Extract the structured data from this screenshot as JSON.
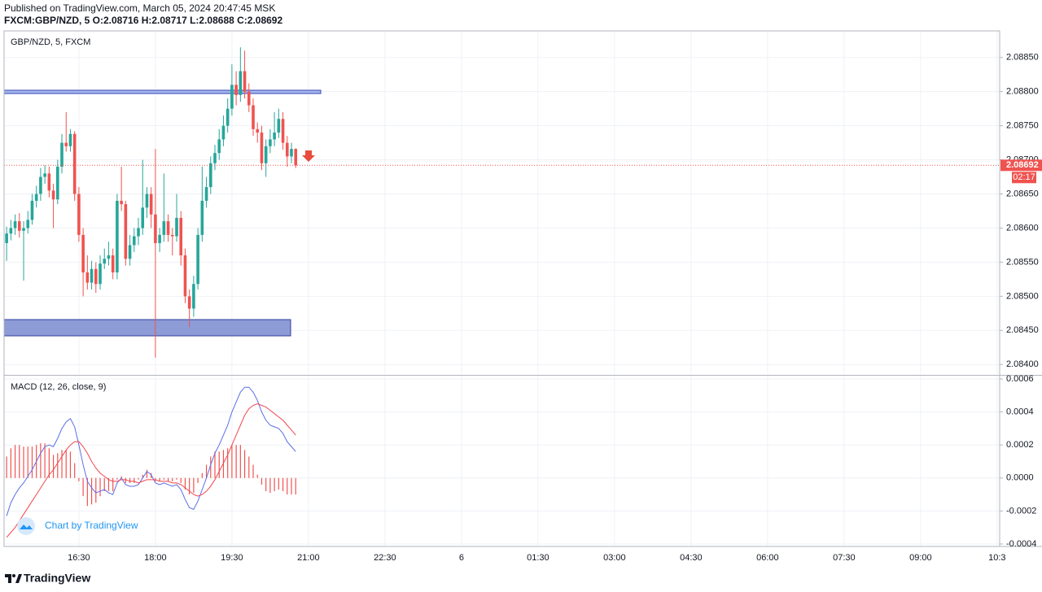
{
  "header": {
    "published": "Published on TradingView.com, March 05, 2024 20:47:45 MSK",
    "symbol_line": "FXCM:GBP/NZD, 5  O:2.08716 H:2.08717 L:2.08688 C:2.08692",
    "watermark": "Chart by TradingView",
    "brand": "TradingView"
  },
  "chart_data": [
    {
      "type": "candlestick",
      "title": "GBP/NZD, 5, FXCM",
      "up_color": "#26a69a",
      "down_color": "#ef5350",
      "countdown": "02:17",
      "x": [
        "15:05",
        "15:10",
        "15:15",
        "15:20",
        "15:25",
        "15:30",
        "15:35",
        "15:40",
        "15:45",
        "15:50",
        "15:55",
        "16:00",
        "16:05",
        "16:10",
        "16:15",
        "16:20",
        "16:25",
        "16:30",
        "16:35",
        "16:40",
        "16:45",
        "16:50",
        "16:55",
        "17:00",
        "17:05",
        "17:10",
        "17:15",
        "17:20",
        "17:25",
        "17:30",
        "17:35",
        "17:40",
        "17:45",
        "17:50",
        "17:55",
        "18:00",
        "18:05",
        "18:10",
        "18:15",
        "18:20",
        "18:25",
        "18:30",
        "18:35",
        "18:40",
        "18:45",
        "18:50",
        "18:55",
        "19:00",
        "19:05",
        "19:10",
        "19:15",
        "19:20",
        "19:25",
        "19:30",
        "19:35",
        "19:40",
        "19:45",
        "19:50",
        "19:55",
        "20:00",
        "20:05",
        "20:10",
        "20:15",
        "20:20",
        "20:25",
        "20:30",
        "20:35",
        "20:40",
        "20:45"
      ],
      "open": [
        2.08578,
        2.08592,
        2.086,
        2.0861,
        2.08596,
        2.086,
        2.08612,
        2.0864,
        2.0865,
        2.08675,
        2.0868,
        2.08655,
        2.08642,
        2.0869,
        2.08725,
        2.0872,
        2.08738,
        2.0865,
        2.0859,
        2.08535,
        2.0852,
        2.0854,
        2.08518,
        2.08548,
        2.08555,
        2.0856,
        2.08535,
        2.0864,
        2.08635,
        2.08555,
        2.08575,
        2.08588,
        2.086,
        2.0863,
        2.0865,
        2.0862,
        2.08578,
        2.0859,
        2.0861,
        2.0859,
        2.08588,
        2.08615,
        2.0856,
        2.085,
        2.08482,
        2.08518,
        2.0859,
        2.0864,
        2.0866,
        2.08695,
        2.0871,
        2.0873,
        2.0875,
        2.08775,
        2.0881,
        2.08795,
        2.0883,
        2.088,
        2.0878,
        2.08745,
        2.0874,
        2.08695,
        2.0872,
        2.0873,
        2.0874,
        2.0876,
        2.08725,
        2.08705,
        2.08716
      ],
      "high": [
        2.08602,
        2.08612,
        2.0862,
        2.08622,
        2.0861,
        2.08625,
        2.0865,
        2.08662,
        2.08688,
        2.08692,
        2.0869,
        2.08665,
        2.087,
        2.08738,
        2.0877,
        2.08745,
        2.08742,
        2.0866,
        2.086,
        2.0856,
        2.08552,
        2.0855,
        2.0856,
        2.0857,
        2.0858,
        2.0857,
        2.0865,
        2.0869,
        2.0864,
        2.0859,
        2.086,
        2.08615,
        2.087,
        2.0866,
        2.0866,
        2.08716,
        2.086,
        2.0868,
        2.0862,
        2.086,
        2.0865,
        2.08625,
        2.0857,
        2.0851,
        2.0853,
        2.086,
        2.0869,
        2.08675,
        2.08705,
        2.08722,
        2.08745,
        2.08765,
        2.0879,
        2.0884,
        2.0883,
        2.08865,
        2.0886,
        2.08812,
        2.0879,
        2.08755,
        2.0875,
        2.0873,
        2.08745,
        2.0877,
        2.08775,
        2.0877,
        2.08735,
        2.08725,
        2.08717
      ],
      "low": [
        2.08552,
        2.08582,
        2.0859,
        2.08586,
        2.08523,
        2.08592,
        2.08605,
        2.0863,
        2.0864,
        2.08665,
        2.08645,
        2.086,
        2.08635,
        2.0868,
        2.08712,
        2.08712,
        2.0864,
        2.0858,
        2.085,
        2.0851,
        2.0851,
        2.08505,
        2.0851,
        2.0854,
        2.08545,
        2.08525,
        2.08525,
        2.08625,
        2.08545,
        2.08545,
        2.08565,
        2.08575,
        2.0859,
        2.08615,
        2.086,
        2.0841,
        2.08565,
        2.0858,
        2.0858,
        2.0856,
        2.0858,
        2.08545,
        2.0849,
        2.08455,
        2.0847,
        2.0851,
        2.0858,
        2.0863,
        2.0865,
        2.08685,
        2.087,
        2.0872,
        2.0874,
        2.08765,
        2.0878,
        2.08785,
        2.0879,
        2.0877,
        2.08735,
        2.08725,
        2.08685,
        2.08675,
        2.0871,
        2.0872,
        2.08732,
        2.08715,
        2.0869,
        2.08695,
        2.08688
      ],
      "close": [
        2.08592,
        2.086,
        2.0861,
        2.08596,
        2.086,
        2.08612,
        2.0864,
        2.0865,
        2.08675,
        2.0868,
        2.08655,
        2.08642,
        2.0869,
        2.08725,
        2.0872,
        2.08738,
        2.0865,
        2.0859,
        2.08535,
        2.0852,
        2.0854,
        2.08518,
        2.08548,
        2.08555,
        2.0856,
        2.08535,
        2.0864,
        2.08635,
        2.08555,
        2.08575,
        2.08588,
        2.086,
        2.0863,
        2.0865,
        2.0862,
        2.08578,
        2.0859,
        2.0861,
        2.0859,
        2.08588,
        2.08615,
        2.0856,
        2.085,
        2.08482,
        2.08518,
        2.0859,
        2.0864,
        2.0866,
        2.08695,
        2.0871,
        2.0873,
        2.0875,
        2.08775,
        2.0881,
        2.08795,
        2.0883,
        2.088,
        2.0878,
        2.08745,
        2.0874,
        2.08695,
        2.0872,
        2.0873,
        2.0874,
        2.0876,
        2.08725,
        2.08705,
        2.08716,
        2.08692
      ],
      "xlim": [
        "15:02",
        "10:33"
      ],
      "xticks": [
        "16:30",
        "18:00",
        "19:30",
        "21:00",
        "22:30",
        "6",
        "01:30",
        "03:00",
        "04:30",
        "06:00",
        "07:30",
        "09:00",
        {
          "value": "10:30",
          "label": "10:3"
        }
      ],
      "ylim": [
        2.08386,
        2.08889
      ],
      "yticks": [
        {
          "value": 2.0885,
          "label": "2.08850"
        },
        {
          "value": 2.088,
          "label": "2.08800"
        },
        {
          "value": 2.0875,
          "label": "2.08750"
        },
        {
          "value": 2.087,
          "label": "2.08700"
        },
        {
          "value": 2.0865,
          "label": "2.08650"
        },
        {
          "value": 2.086,
          "label": "2.08600"
        },
        {
          "value": 2.0855,
          "label": "2.08550"
        },
        {
          "value": 2.085,
          "label": "2.08500"
        },
        {
          "value": 2.0845,
          "label": "2.08450"
        },
        {
          "value": 2.084,
          "label": "2.08400"
        }
      ],
      "grid": true
    },
    {
      "type": "macd",
      "title": "MACD (12, 26, close, 9)",
      "series": [
        {
          "color": "#5b6ee8",
          "values": [
            -0.00023,
            -0.00015,
            -0.0001,
            -6e-05,
            -3e-05,
            1e-05,
            5e-05,
            0.0001,
            0.00015,
            0.00019,
            0.0002,
            0.00019,
            0.00024,
            0.0003,
            0.00034,
            0.00036,
            0.00031,
            0.0002,
            8e-05,
            -2e-05,
            -6e-05,
            -9e-05,
            -8e-05,
            -7e-05,
            -9e-05,
            -0.0001,
            -3e-05,
            0,
            -4e-05,
            -5e-05,
            -5e-05,
            -4e-05,
            0,
            4e-05,
            2e-05,
            -3e-05,
            -4e-05,
            -3e-05,
            -4e-05,
            -5e-05,
            -4e-05,
            -7e-05,
            -0.00013,
            -0.00018,
            -0.00019,
            -0.00014,
            -7e-05,
            0,
            8e-05,
            0.00015,
            0.0002,
            0.00026,
            0.00032,
            0.0004,
            0.00046,
            0.00052,
            0.00055,
            0.00055,
            0.00052,
            0.00047,
            0.0004,
            0.00035,
            0.00032,
            0.00031,
            0.0003,
            0.00027,
            0.00022,
            0.00019,
            0.00016
          ]
        },
        {
          "color": "#f0464e",
          "values": [
            -0.00036,
            -0.00033,
            -0.0003,
            -0.00026,
            -0.00022,
            -0.00018,
            -0.00014,
            -0.0001,
            -6e-05,
            -2e-05,
            2e-05,
            5e-05,
            9e-05,
            0.00013,
            0.00017,
            0.0002,
            0.00022,
            0.00022,
            0.00019,
            0.00015,
            0.0001,
            6e-05,
            3e-05,
            1e-05,
            -1e-05,
            -2e-05,
            -2e-05,
            -1e-05,
            -1e-05,
            -2e-05,
            -2e-05,
            -3e-05,
            -2e-05,
            -1e-05,
            -1e-05,
            -1e-05,
            -2e-05,
            -2e-05,
            -2e-05,
            -3e-05,
            -3e-05,
            -4e-05,
            -6e-05,
            -8e-05,
            -0.0001,
            -0.00011,
            -0.0001,
            -8e-05,
            -5e-05,
            -1e-05,
            4e-05,
            9e-05,
            0.00014,
            0.0002,
            0.00026,
            0.00032,
            0.00038,
            0.00042,
            0.00044,
            0.00045,
            0.00044,
            0.00043,
            0.00041,
            0.00039,
            0.00037,
            0.00035,
            0.00032,
            0.00029,
            0.00026
          ]
        }
      ],
      "histogram": {
        "color": "#ef5350",
        "values": [
          0.00013,
          0.00018,
          0.0002,
          0.0002,
          0.00019,
          0.00019,
          0.00019,
          0.0002,
          0.00021,
          0.00021,
          0.00018,
          0.00014,
          0.00015,
          0.00017,
          0.00017,
          0.00016,
          9e-05,
          -2e-05,
          -0.00011,
          -0.00017,
          -0.00016,
          -0.00015,
          -0.00011,
          -8e-05,
          -8e-05,
          -8e-05,
          -1e-05,
          1e-05,
          -3e-05,
          -3e-05,
          -3e-05,
          -1e-05,
          2e-05,
          5e-05,
          3e-05,
          -2e-05,
          -2e-05,
          -1e-05,
          -2e-05,
          -2e-05,
          -1e-05,
          -3e-05,
          -7e-05,
          -0.0001,
          -9e-05,
          -3e-05,
          3e-05,
          8e-05,
          0.00013,
          0.00016,
          0.00016,
          0.00017,
          0.00018,
          0.0002,
          0.0002,
          0.0002,
          0.00017,
          0.00013,
          8e-05,
          2e-05,
          -4e-05,
          -8e-05,
          -9e-05,
          -8e-05,
          -7e-05,
          -8e-05,
          -0.0001,
          -0.0001,
          -0.0001
        ]
      },
      "ylim": [
        -0.000415,
        0.00062
      ],
      "yticks": [
        0.0006,
        0.0004,
        0.0002,
        {
          "value": 0,
          "label": "0.0000"
        },
        -0.0002,
        -0.0004
      ],
      "grid": true
    }
  ]
}
